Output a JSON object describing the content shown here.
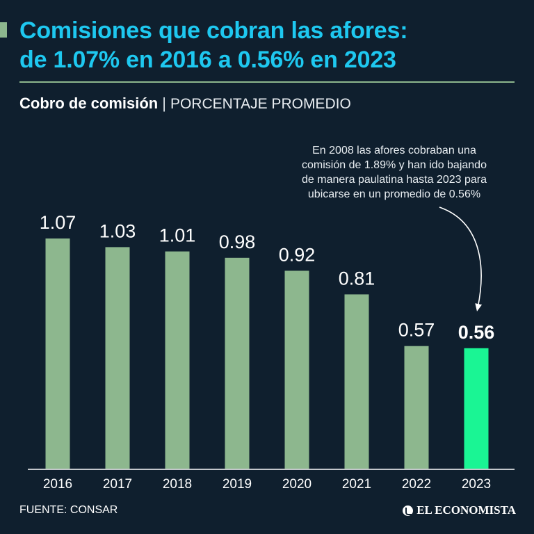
{
  "header": {
    "title_line1": "Comisiones que cobran las afores:",
    "title_line2": "de 1.07% en 2016 a 0.56% en 2023"
  },
  "subtitle": {
    "bold": "Cobro de comisión",
    "separator": "|",
    "light": "PORCENTAJE PROMEDIO"
  },
  "annotation": {
    "lines": [
      "En 2008 las afores cobraban una",
      "comisión de 1.89% y han ido bajando",
      "de manera paulatina hasta 2023 para",
      "ubicarse en un promedio de 0.56%"
    ]
  },
  "footer": {
    "source": "FUENTE: CONSAR",
    "brand": "EL ECONOMISTA"
  },
  "colors": {
    "background": "#0f1f2e",
    "title": "#1ec8f0",
    "bar": "#8db78e",
    "bar_highlight": "#1af594",
    "text": "#ffffff"
  },
  "chart_data": {
    "type": "bar",
    "title": "Cobro de comisión",
    "ylabel": "PORCENTAJE PROMEDIO",
    "xlabel": "",
    "categories": [
      "2016",
      "2017",
      "2018",
      "2019",
      "2020",
      "2021",
      "2022",
      "2023"
    ],
    "values": [
      1.07,
      1.03,
      1.01,
      0.98,
      0.92,
      0.81,
      0.57,
      0.56
    ],
    "value_labels": [
      "1.07",
      "1.03",
      "1.01",
      "0.98",
      "0.92",
      "0.81",
      "0.57",
      "0.56"
    ],
    "highlight_index": 7,
    "ylim": [
      0,
      1.07
    ],
    "grid": false,
    "legend": "none"
  }
}
